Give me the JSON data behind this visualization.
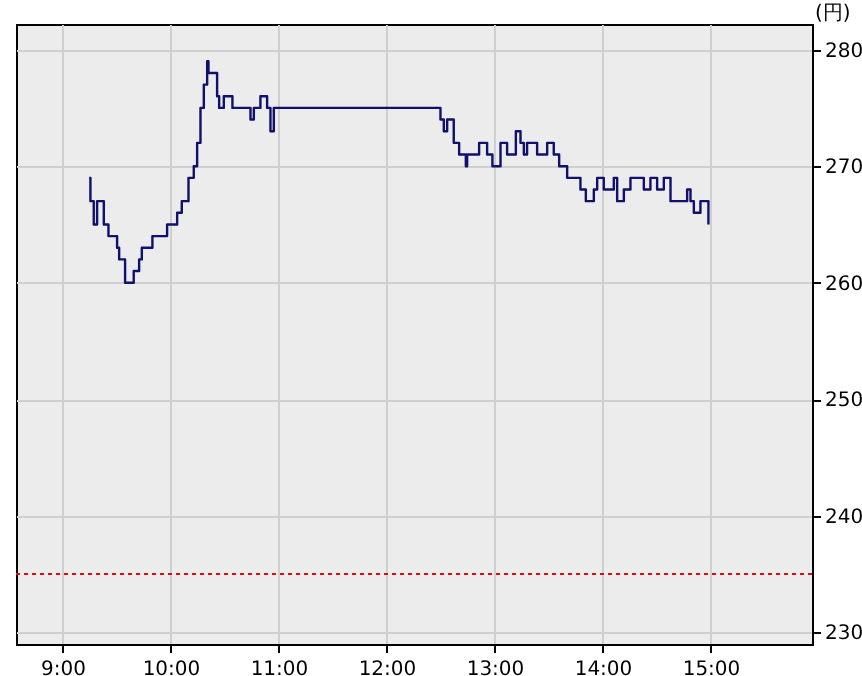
{
  "chart_data": {
    "type": "step",
    "ylabel": "(円)",
    "xlim": [
      8.57,
      15.94
    ],
    "ylim": [
      229,
      282.2
    ],
    "xticks": [
      {
        "value": 9,
        "label": "9:00"
      },
      {
        "value": 10,
        "label": "10:00"
      },
      {
        "value": 11,
        "label": "11:00"
      },
      {
        "value": 12,
        "label": "12:00"
      },
      {
        "value": 13,
        "label": "13:00"
      },
      {
        "value": 14,
        "label": "14:00"
      },
      {
        "value": 15,
        "label": "15:00"
      }
    ],
    "yticks": [
      230,
      240,
      250,
      260,
      270,
      280
    ],
    "grid": true,
    "marker": "none",
    "line_style": "solid",
    "ref_lines": [
      {
        "axis": "y",
        "value": 235,
        "color": "#d01010",
        "line_style": "dotted"
      }
    ],
    "series": [
      {
        "color": "#10106e",
        "x": [
          9.247,
          9.259,
          9.29,
          9.321,
          9.383,
          9.426,
          9.506,
          9.525,
          9.58,
          9.66,
          9.71,
          9.735,
          9.833,
          9.969,
          10.062,
          10.105,
          10.167,
          10.216,
          10.247,
          10.278,
          10.309,
          10.34,
          10.352,
          10.432,
          10.451,
          10.494,
          10.574,
          10.741,
          10.772,
          10.833,
          10.895,
          10.926,
          10.957,
          12.5,
          12.531,
          12.562,
          12.623,
          12.673,
          12.735,
          12.747,
          12.858,
          12.932,
          12.981,
          13.056,
          13.117,
          13.198,
          13.241,
          13.272,
          13.302,
          13.395,
          13.488,
          13.549,
          13.599,
          13.673,
          13.796,
          13.846,
          13.92,
          13.951,
          14.012,
          14.105,
          14.136,
          14.198,
          14.259,
          14.383,
          14.444,
          14.506,
          14.568,
          14.63,
          14.784,
          14.815,
          14.846,
          14.907,
          14.981
        ],
        "values": [
          269,
          267,
          265,
          267,
          265,
          264,
          263,
          262,
          260,
          261,
          262,
          263,
          264,
          265,
          266,
          267,
          269,
          270,
          272,
          275,
          277,
          279,
          278,
          276,
          275,
          276,
          275,
          274,
          275,
          276,
          275,
          273,
          275,
          274,
          273,
          274,
          272,
          271,
          270,
          271,
          272,
          271,
          270,
          272,
          271,
          273,
          272,
          271,
          272,
          271,
          272,
          271,
          270,
          269,
          268,
          267,
          268,
          269,
          268,
          269,
          267,
          268,
          269,
          268,
          269,
          268,
          269,
          267,
          268,
          267,
          266,
          267,
          265
        ]
      }
    ]
  }
}
